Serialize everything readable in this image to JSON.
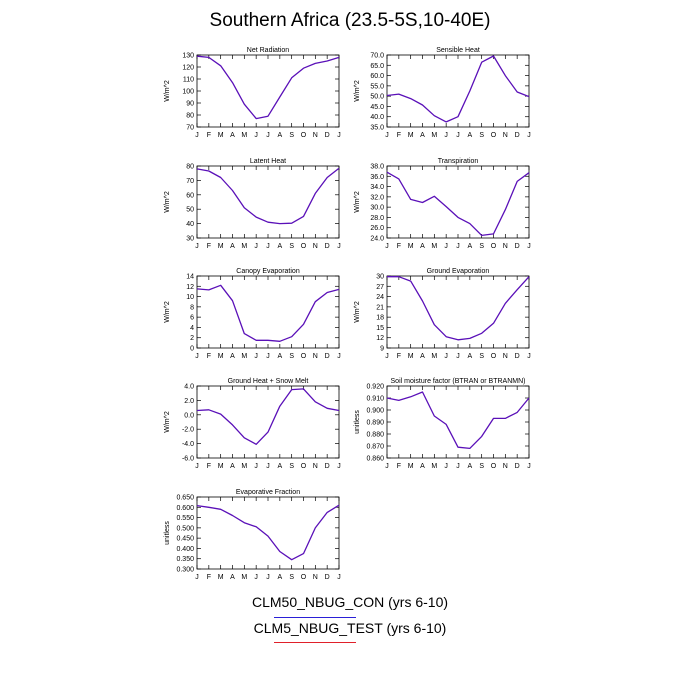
{
  "title": "Southern Africa (23.5-5S,10-40E)",
  "months": [
    "J",
    "F",
    "M",
    "A",
    "M",
    "J",
    "J",
    "A",
    "S",
    "O",
    "N",
    "D",
    "J"
  ],
  "colors": {
    "con": "#2a1fd6",
    "test": "#e0202a",
    "overlap": "#5a10b8"
  },
  "legend": {
    "con_label": "CLM50_NBUG_CON (yrs 6-10)",
    "test_label": "CLM5_NBUG_TEST (yrs 6-10)"
  },
  "chart_data": [
    {
      "type": "line",
      "title": "Net Radiation",
      "ylabel": "W/m^2",
      "yticks": [
        "130",
        "120",
        "110",
        "100",
        "90",
        "80",
        "70"
      ],
      "ylim": [
        70,
        130
      ],
      "series": [
        {
          "values": [
            129,
            128,
            121,
            107,
            89,
            77,
            79,
            95,
            111,
            119,
            123,
            125,
            128
          ]
        }
      ]
    },
    {
      "type": "line",
      "title": "Sensible Heat",
      "ylabel": "W/m^2",
      "yticks": [
        "70.0",
        "65.0",
        "60.0",
        "55.0",
        "50.0",
        "45.0",
        "40.0",
        "35.0"
      ],
      "ylim": [
        35,
        70
      ],
      "series": [
        {
          "values": [
            50.3,
            51.0,
            48.8,
            45.7,
            40.5,
            37.5,
            40.0,
            52.5,
            66.5,
            69.5,
            60.0,
            52.0,
            49.8
          ]
        }
      ]
    },
    {
      "type": "line",
      "title": "Latent Heat",
      "ylabel": "W/m^2",
      "yticks": [
        "80",
        "70",
        "60",
        "50",
        "40",
        "30"
      ],
      "ylim": [
        30,
        80
      ],
      "series": [
        {
          "values": [
            78,
            76.5,
            72,
            63,
            51,
            44.5,
            41,
            40,
            40.3,
            45,
            61,
            72,
            78.5
          ]
        }
      ]
    },
    {
      "type": "line",
      "title": "Transpiration",
      "ylabel": "W/m^2",
      "yticks": [
        "38.0",
        "36.0",
        "34.0",
        "32.0",
        "30.0",
        "28.0",
        "26.0",
        "24.0"
      ],
      "ylim": [
        24,
        38
      ],
      "series": [
        {
          "values": [
            36.8,
            35.5,
            31.5,
            30.9,
            32.1,
            30.1,
            28.0,
            26.8,
            24.5,
            24.8,
            29.5,
            35.0,
            36.7
          ]
        }
      ]
    },
    {
      "type": "line",
      "title": "Canopy Evaporation",
      "ylabel": "W/m^2",
      "yticks": [
        "14",
        "12",
        "10",
        "8",
        "6",
        "4",
        "2",
        "0"
      ],
      "ylim": [
        0,
        14
      ],
      "series": [
        {
          "values": [
            11.5,
            11.3,
            12.2,
            9.2,
            2.8,
            1.5,
            1.5,
            1.3,
            2.2,
            4.6,
            9.0,
            10.8,
            11.4
          ]
        }
      ]
    },
    {
      "type": "line",
      "title": "Ground Evaporation",
      "ylabel": "W/m^2",
      "yticks": [
        "30",
        "27",
        "24",
        "21",
        "18",
        "15",
        "12",
        "9"
      ],
      "ylim": [
        9,
        30
      ],
      "series": [
        {
          "values": [
            29.8,
            29.8,
            28.5,
            22.7,
            15.8,
            12.3,
            11.4,
            11.8,
            13.3,
            16.2,
            22.0,
            26.0,
            29.8
          ]
        }
      ]
    },
    {
      "type": "line",
      "title": "Ground Heat + Snow Melt",
      "ylabel": "W/m^2",
      "yticks": [
        "4.0",
        "2.0",
        "0.0",
        "-2.0",
        "-4.0",
        "-6.0"
      ],
      "ylim": [
        -6,
        4
      ],
      "series": [
        {
          "values": [
            0.6,
            0.7,
            0.1,
            -1.4,
            -3.2,
            -4.1,
            -2.4,
            1.2,
            3.5,
            3.6,
            1.8,
            0.9,
            0.6
          ]
        }
      ]
    },
    {
      "type": "line",
      "title": "Soil moisture factor (BTRAN or BTRANMN)",
      "ylabel": "unitless",
      "yticks": [
        "0.920",
        "0.910",
        "0.900",
        "0.890",
        "0.880",
        "0.870",
        "0.860"
      ],
      "ylim": [
        0.86,
        0.92
      ],
      "series": [
        {
          "values": [
            0.91,
            0.908,
            0.911,
            0.915,
            0.895,
            0.888,
            0.869,
            0.868,
            0.878,
            0.893,
            0.893,
            0.898,
            0.91
          ]
        }
      ]
    },
    {
      "type": "line",
      "title": "Evaporative Fraction",
      "ylabel": "unitless",
      "yticks": [
        "0.650",
        "0.600",
        "0.550",
        "0.500",
        "0.450",
        "0.400",
        "0.350",
        "0.300"
      ],
      "ylim": [
        0.3,
        0.65
      ],
      "series": [
        {
          "values": [
            0.608,
            0.6,
            0.59,
            0.56,
            0.525,
            0.505,
            0.46,
            0.385,
            0.345,
            0.375,
            0.5,
            0.575,
            0.61
          ]
        }
      ]
    }
  ]
}
